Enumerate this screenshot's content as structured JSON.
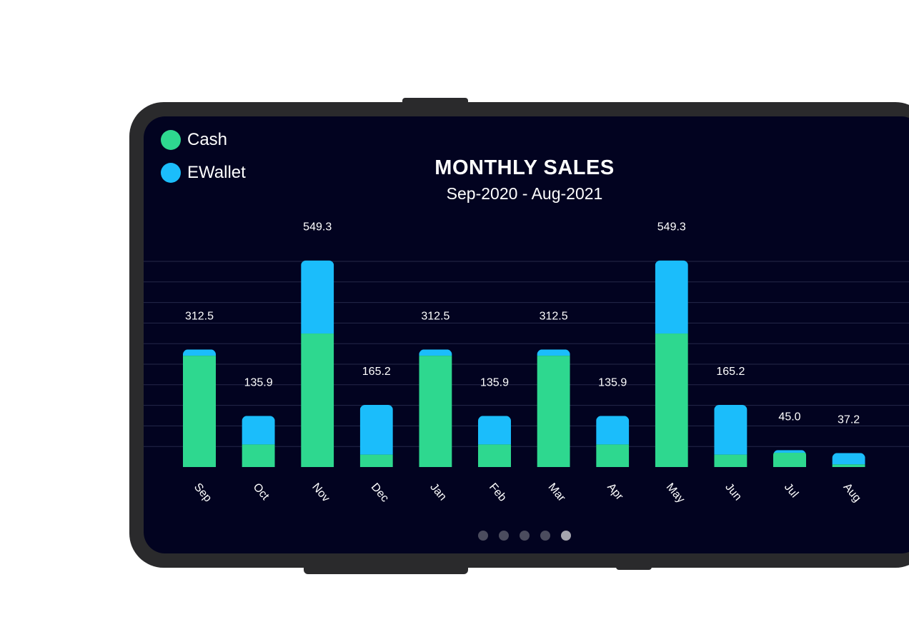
{
  "chart_data": {
    "type": "bar",
    "stacked": true,
    "title": "MONTHLY SALES",
    "subtitle": "Sep-2020 - Aug-2021",
    "categories": [
      "Sep",
      "Oct",
      "Nov",
      "Dec",
      "Jan",
      "Feb",
      "Mar",
      "Apr",
      "May",
      "Jun",
      "Jul",
      "Aug"
    ],
    "totals": [
      "312.5",
      "135.9",
      "549.3",
      "165.2",
      "312.5",
      "135.9",
      "312.5",
      "135.9",
      "549.3",
      "165.2",
      "45.0",
      "37.2"
    ],
    "series": [
      {
        "name": "Cash",
        "color": "#2ed88f",
        "values": [
          296,
          60,
          355,
          33,
          296,
          60,
          296,
          60,
          355,
          33,
          38,
          7
        ]
      },
      {
        "name": "EWallet",
        "color": "#1bbdfb",
        "values": [
          16.5,
          75.9,
          194.3,
          132.2,
          16.5,
          75.9,
          16.5,
          75.9,
          194.3,
          132.2,
          7,
          30.2
        ]
      }
    ],
    "ylim": [
      0,
      600
    ],
    "grid": true,
    "legend_position": "top-left"
  },
  "pager": {
    "count": 5,
    "active_index": 4
  }
}
